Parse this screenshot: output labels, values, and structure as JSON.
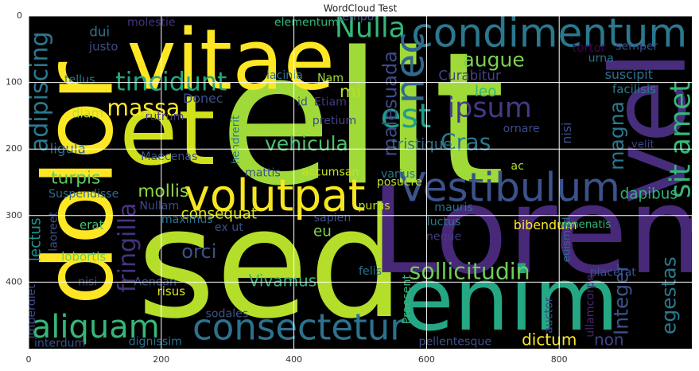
{
  "chart_data": {
    "type": "wordcloud",
    "title": "WordCloud Test",
    "xlim": [
      0,
      1000
    ],
    "ylim": [
      500,
      0
    ],
    "xticks": [
      0,
      200,
      400,
      600,
      800
    ],
    "yticks": [
      0,
      100,
      200,
      300,
      400
    ],
    "grid": true,
    "background": "#000000",
    "grid_color": "#ffffff",
    "words": [
      {
        "text": "elit",
        "x": 503,
        "y": 156,
        "size": 276,
        "color": "#a0da39"
      },
      {
        "text": "sed",
        "x": 365,
        "y": 372,
        "size": 228,
        "color": "#b5de2b"
      },
      {
        "text": "Lorem",
        "x": 797,
        "y": 324,
        "size": 180,
        "color": "#482878"
      },
      {
        "text": "enim",
        "x": 725,
        "y": 426,
        "size": 132,
        "color": "#25a784"
      },
      {
        "text": "vel",
        "x": 935,
        "y": 168,
        "size": 156,
        "color": "#472d7b",
        "vertical": true
      },
      {
        "text": "dolor",
        "x": 77,
        "y": 252,
        "size": 144,
        "color": "#fde725",
        "vertical": true
      },
      {
        "text": "vitae",
        "x": 305,
        "y": 66,
        "size": 126,
        "color": "#fde725"
      },
      {
        "text": "et",
        "x": 209,
        "y": 174,
        "size": 144,
        "color": "#d0e11c"
      },
      {
        "text": "condimentum",
        "x": 785,
        "y": 26,
        "size": 60,
        "color": "#2a788e"
      },
      {
        "text": "volutpat",
        "x": 371,
        "y": 270,
        "size": 66,
        "color": "#f6e620"
      },
      {
        "text": "Vestibulum",
        "x": 725,
        "y": 258,
        "size": 60,
        "color": "#3b528b"
      },
      {
        "text": "consectetur",
        "x": 407,
        "y": 468,
        "size": 54,
        "color": "#2c728e"
      },
      {
        "text": "aliquam",
        "x": 101,
        "y": 468,
        "size": 48,
        "color": "#35b779"
      },
      {
        "text": "Nulla",
        "x": 515,
        "y": 18,
        "size": 42,
        "color": "#35b779"
      },
      {
        "text": "nec",
        "x": 575,
        "y": 78,
        "size": 60,
        "color": "#31688e",
        "vertical": true
      },
      {
        "text": "tincidunt",
        "x": 215,
        "y": 100,
        "size": 38,
        "color": "#22a884"
      },
      {
        "text": "est",
        "x": 569,
        "y": 150,
        "size": 50,
        "color": "#1f9e89"
      },
      {
        "text": "ipsum",
        "x": 695,
        "y": 138,
        "size": 42,
        "color": "#443983"
      },
      {
        "text": "sit amet",
        "x": 983,
        "y": 186,
        "size": 43,
        "color": "#35b779",
        "vertical": true
      },
      {
        "text": "massa",
        "x": 173,
        "y": 138,
        "size": 34,
        "color": "#fde725"
      },
      {
        "text": "augue",
        "x": 701,
        "y": 66,
        "size": 30,
        "color": "#7ad151"
      },
      {
        "text": "Curabitur",
        "x": 665,
        "y": 90,
        "size": 20,
        "color": "#414487"
      },
      {
        "text": "adipiscing",
        "x": 17,
        "y": 114,
        "size": 36,
        "color": "#2a788e",
        "vertical": true
      },
      {
        "text": "malesuada",
        "x": 545,
        "y": 132,
        "size": 29,
        "color": "#3e4a89",
        "vertical": true
      },
      {
        "text": "mi",
        "x": 485,
        "y": 114,
        "size": 26,
        "color": "#bddf26"
      },
      {
        "text": "vehicula",
        "x": 419,
        "y": 192,
        "size": 30,
        "color": "#4ac16d"
      },
      {
        "text": "Cras",
        "x": 659,
        "y": 190,
        "size": 34,
        "color": "#2a788e"
      },
      {
        "text": "tristique",
        "x": 593,
        "y": 194,
        "size": 22,
        "color": "#2c728e"
      },
      {
        "text": "magna",
        "x": 887,
        "y": 180,
        "size": 30,
        "color": "#2a788e",
        "vertical": true
      },
      {
        "text": "leo",
        "x": 689,
        "y": 114,
        "size": 22,
        "color": "#35b779"
      },
      {
        "text": "Donec",
        "x": 263,
        "y": 124,
        "size": 19,
        "color": "#3b528b"
      },
      {
        "text": "diam",
        "x": 89,
        "y": 146,
        "size": 19,
        "color": "#bddf26"
      },
      {
        "text": "ligula",
        "x": 59,
        "y": 200,
        "size": 20,
        "color": "#31688e"
      },
      {
        "text": "turpis",
        "x": 71,
        "y": 244,
        "size": 26,
        "color": "#5ec962"
      },
      {
        "text": "mollis",
        "x": 203,
        "y": 264,
        "size": 26,
        "color": "#8fd744"
      },
      {
        "text": "Suspendisse",
        "x": 83,
        "y": 268,
        "size": 17,
        "color": "#2e6e8e"
      },
      {
        "text": "lectus",
        "x": 11,
        "y": 336,
        "size": 22,
        "color": "#21918c",
        "vertical": true
      },
      {
        "text": "fringilla",
        "x": 149,
        "y": 348,
        "size": 36,
        "color": "#46337e",
        "vertical": true
      },
      {
        "text": "Nullam",
        "x": 197,
        "y": 286,
        "size": 17,
        "color": "#3e4a89"
      },
      {
        "text": "consequat",
        "x": 287,
        "y": 298,
        "size": 22,
        "color": "#d8e219"
      },
      {
        "text": "maximus",
        "x": 239,
        "y": 306,
        "size": 17,
        "color": "#2c728e"
      },
      {
        "text": "orci",
        "x": 257,
        "y": 354,
        "size": 29,
        "color": "#3b528b"
      },
      {
        "text": "eu",
        "x": 443,
        "y": 324,
        "size": 22,
        "color": "#7ad151"
      },
      {
        "text": "erat",
        "x": 95,
        "y": 314,
        "size": 18,
        "color": "#4ac16d"
      },
      {
        "text": "lobortis",
        "x": 83,
        "y": 362,
        "size": 18,
        "color": "#6ece58"
      },
      {
        "text": "Vivamus",
        "x": 383,
        "y": 398,
        "size": 24,
        "color": "#35b779"
      },
      {
        "text": "sollicitudin",
        "x": 665,
        "y": 384,
        "size": 34,
        "color": "#6ece58"
      },
      {
        "text": "Integer",
        "x": 893,
        "y": 426,
        "size": 30,
        "color": "#3b528b",
        "vertical": true
      },
      {
        "text": "egestas",
        "x": 965,
        "y": 420,
        "size": 30,
        "color": "#2a788e",
        "vertical": true
      },
      {
        "text": "dictum",
        "x": 785,
        "y": 486,
        "size": 24,
        "color": "#fde725"
      },
      {
        "text": "non",
        "x": 875,
        "y": 486,
        "size": 24,
        "color": "#414487"
      },
      {
        "text": "dapibus",
        "x": 935,
        "y": 268,
        "size": 22,
        "color": "#2fb47c"
      },
      {
        "text": "bibendum",
        "x": 779,
        "y": 314,
        "size": 19,
        "color": "#fde725"
      },
      {
        "text": "laoreet",
        "x": 38,
        "y": 324,
        "size": 17,
        "color": "#3b528b",
        "vertical": true
      },
      {
        "text": "imperdiet",
        "x": 5,
        "y": 444,
        "size": 17,
        "color": "#3e4a89",
        "vertical": true
      },
      {
        "text": "interdum",
        "x": 47,
        "y": 492,
        "size": 17,
        "color": "#3b528b"
      },
      {
        "text": "dignissim",
        "x": 191,
        "y": 490,
        "size": 17,
        "color": "#2c728e"
      },
      {
        "text": "sodales",
        "x": 299,
        "y": 448,
        "size": 17,
        "color": "#3b528b"
      },
      {
        "text": "risus",
        "x": 215,
        "y": 414,
        "size": 18,
        "color": "#dde318"
      },
      {
        "text": "nisi",
        "x": 89,
        "y": 400,
        "size": 17,
        "color": "#414487"
      },
      {
        "text": "Aenean",
        "x": 191,
        "y": 400,
        "size": 17,
        "color": "#3b528b"
      },
      {
        "text": "felis",
        "x": 515,
        "y": 384,
        "size": 17,
        "color": "#2c728e"
      },
      {
        "text": "Praesent",
        "x": 571,
        "y": 426,
        "size": 17,
        "color": "#35b779",
        "vertical": true
      },
      {
        "text": "auctor",
        "x": 785,
        "y": 450,
        "size": 17,
        "color": "#3e4a89",
        "vertical": true
      },
      {
        "text": "pellentesque",
        "x": 643,
        "y": 490,
        "size": 17,
        "color": "#3b528b"
      },
      {
        "text": "ullamcorper",
        "x": 847,
        "y": 432,
        "size": 17,
        "color": "#482475",
        "vertical": true
      },
      {
        "text": "placerat",
        "x": 881,
        "y": 386,
        "size": 17,
        "color": "#3b528b"
      },
      {
        "text": "euismod",
        "x": 812,
        "y": 336,
        "size": 16,
        "color": "#31688e",
        "vertical": true
      },
      {
        "text": "neque",
        "x": 626,
        "y": 332,
        "size": 17,
        "color": "#443983"
      },
      {
        "text": "luctus",
        "x": 626,
        "y": 310,
        "size": 17,
        "color": "#2a788e"
      },
      {
        "text": "mauris",
        "x": 641,
        "y": 288,
        "size": 17,
        "color": "#2c728e"
      },
      {
        "text": "venenatis",
        "x": 839,
        "y": 314,
        "size": 16,
        "color": "#35b779"
      },
      {
        "text": "sapien",
        "x": 458,
        "y": 304,
        "size": 17,
        "color": "#3b528b"
      },
      {
        "text": "ex ut",
        "x": 302,
        "y": 318,
        "size": 17,
        "color": "#3b528b"
      },
      {
        "text": "posuere",
        "x": 559,
        "y": 250,
        "size": 17,
        "color": "#bddf26"
      },
      {
        "text": "varius",
        "x": 557,
        "y": 238,
        "size": 17,
        "color": "#2a788e"
      },
      {
        "text": "accumsan",
        "x": 455,
        "y": 235,
        "size": 17,
        "color": "#c8e020"
      },
      {
        "text": "mattis",
        "x": 353,
        "y": 236,
        "size": 17,
        "color": "#3b528b"
      },
      {
        "text": "Maecenas",
        "x": 212,
        "y": 212,
        "size": 17,
        "color": "#3b528b"
      },
      {
        "text": "hendrerit",
        "x": 313,
        "y": 186,
        "size": 16,
        "color": "#2a788e",
        "vertical": true
      },
      {
        "text": "rutrum",
        "x": 205,
        "y": 152,
        "size": 17,
        "color": "#443983"
      },
      {
        "text": "id",
        "x": 413,
        "y": 130,
        "size": 17,
        "color": "#3b528b"
      },
      {
        "text": "Etiam",
        "x": 455,
        "y": 130,
        "size": 17,
        "color": "#46337e"
      },
      {
        "text": "pretium",
        "x": 461,
        "y": 158,
        "size": 17,
        "color": "#414487"
      },
      {
        "text": "lacinia",
        "x": 386,
        "y": 90,
        "size": 17,
        "color": "#2c728e"
      },
      {
        "text": "Nam",
        "x": 455,
        "y": 94,
        "size": 17,
        "color": "#a0da39"
      },
      {
        "text": "purus",
        "x": 521,
        "y": 286,
        "size": 17,
        "color": "#bddf26"
      },
      {
        "text": "tempor",
        "x": 497,
        "y": 2,
        "size": 17,
        "color": "#3b528b"
      },
      {
        "text": "elementum",
        "x": 419,
        "y": 10,
        "size": 17,
        "color": "#35b779"
      },
      {
        "text": "molestie",
        "x": 185,
        "y": 10,
        "size": 17,
        "color": "#46337e"
      },
      {
        "text": "dui",
        "x": 107,
        "y": 24,
        "size": 20,
        "color": "#2c728e"
      },
      {
        "text": "justo",
        "x": 113,
        "y": 46,
        "size": 18,
        "color": "#3e4a89"
      },
      {
        "text": "tellus",
        "x": 77,
        "y": 96,
        "size": 17,
        "color": "#2a788e"
      },
      {
        "text": "ac",
        "x": 737,
        "y": 226,
        "size": 17,
        "color": "#b5de2b"
      },
      {
        "text": "velit",
        "x": 926,
        "y": 194,
        "size": 16,
        "color": "#414487"
      },
      {
        "text": "nisi",
        "x": 811,
        "y": 176,
        "size": 19,
        "color": "#3b528b",
        "vertical": true
      },
      {
        "text": "ornare",
        "x": 743,
        "y": 170,
        "size": 17,
        "color": "#3e4a89"
      },
      {
        "text": "facilisis",
        "x": 913,
        "y": 110,
        "size": 18,
        "color": "#2a788e"
      },
      {
        "text": "suscipit",
        "x": 905,
        "y": 88,
        "size": 19,
        "color": "#2c728e"
      },
      {
        "text": "tortor",
        "x": 845,
        "y": 48,
        "size": 18,
        "color": "#440154"
      },
      {
        "text": "semper",
        "x": 917,
        "y": 46,
        "size": 17,
        "color": "#3b528b"
      },
      {
        "text": "urna",
        "x": 863,
        "y": 64,
        "size": 17,
        "color": "#2c728e"
      }
    ]
  }
}
